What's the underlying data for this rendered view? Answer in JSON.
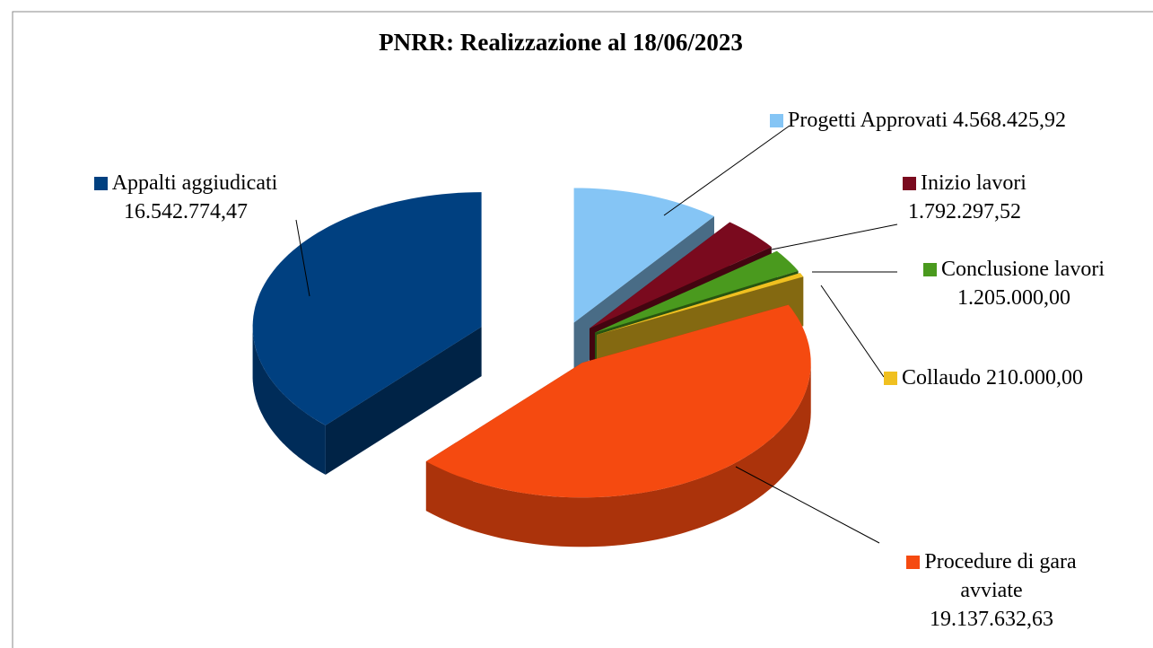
{
  "chart_data": {
    "type": "pie3d",
    "title": "PNRR: Realizzazione al 18/06/2023",
    "categories": [
      "Progetti Approvati",
      "Inizio lavori",
      "Conclusione lavori",
      "Collaudo",
      "Procedure di gara avviate",
      "Appalti aggiudicati"
    ],
    "values": [
      4568425.92,
      1792297.52,
      1205000.0,
      210000.0,
      19137632.63,
      16542774.47
    ],
    "value_labels": [
      "4.568.425,92",
      "1.792.297,52",
      "1.205.000,00",
      "210.000,00",
      "19.137.632,63",
      "16.542.774,47"
    ],
    "colors": [
      "#85c5f5",
      "#7a0a1e",
      "#4a9a1e",
      "#f0c020",
      "#f54a10",
      "#004080"
    ]
  }
}
